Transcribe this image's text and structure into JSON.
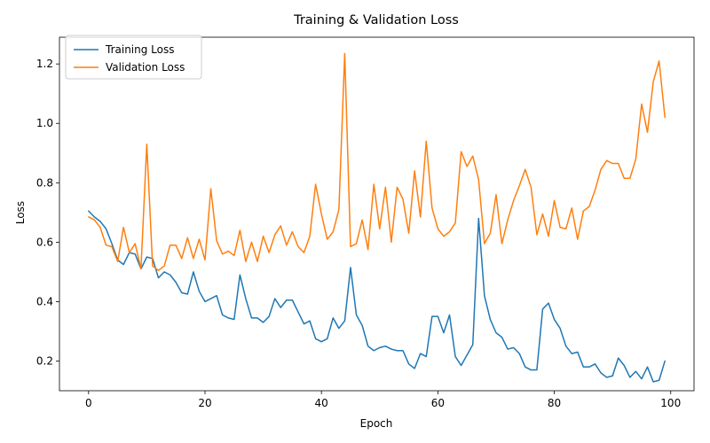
{
  "chart_data": {
    "type": "line",
    "title": "Training & Validation Loss",
    "xlabel": "Epoch",
    "ylabel": "Loss",
    "xlim": [
      -5,
      104
    ],
    "ylim": [
      0.1,
      1.29
    ],
    "xticks": [
      0,
      20,
      40,
      60,
      80,
      100
    ],
    "yticks": [
      0.2,
      0.4,
      0.6,
      0.8,
      1.0,
      1.2
    ],
    "ytick_labels": [
      "0.2",
      "0.4",
      "0.6",
      "0.8",
      "1.0",
      "1.2"
    ],
    "grid": false,
    "legend_position": "upper-left",
    "series": [
      {
        "name": "Training Loss",
        "color": "#1f77b4",
        "x": [
          0,
          1,
          2,
          3,
          4,
          5,
          6,
          7,
          8,
          9,
          10,
          11,
          12,
          13,
          14,
          15,
          16,
          17,
          18,
          19,
          20,
          21,
          22,
          23,
          24,
          25,
          26,
          27,
          28,
          29,
          30,
          31,
          32,
          33,
          34,
          35,
          36,
          37,
          38,
          39,
          40,
          41,
          42,
          43,
          44,
          45,
          46,
          47,
          48,
          49,
          50,
          51,
          52,
          53,
          54,
          55,
          56,
          57,
          58,
          59,
          60,
          61,
          62,
          63,
          64,
          65,
          66,
          67,
          68,
          69,
          70,
          71,
          72,
          73,
          74,
          75,
          76,
          77,
          78,
          79,
          80,
          81,
          82,
          83,
          84,
          85,
          86,
          87,
          88,
          89,
          90,
          91,
          92,
          93,
          94,
          95,
          96,
          97,
          98,
          99
        ],
        "y": [
          0.705,
          0.685,
          0.67,
          0.645,
          0.595,
          0.54,
          0.525,
          0.565,
          0.56,
          0.51,
          0.55,
          0.545,
          0.48,
          0.5,
          0.49,
          0.465,
          0.43,
          0.425,
          0.5,
          0.435,
          0.4,
          0.41,
          0.42,
          0.355,
          0.345,
          0.34,
          0.49,
          0.41,
          0.345,
          0.345,
          0.33,
          0.35,
          0.41,
          0.38,
          0.405,
          0.405,
          0.365,
          0.325,
          0.335,
          0.275,
          0.265,
          0.275,
          0.345,
          0.31,
          0.335,
          0.515,
          0.355,
          0.32,
          0.25,
          0.235,
          0.245,
          0.25,
          0.24,
          0.235,
          0.235,
          0.19,
          0.175,
          0.225,
          0.215,
          0.35,
          0.35,
          0.295,
          0.355,
          0.215,
          0.185,
          0.22,
          0.255,
          0.68,
          0.42,
          0.34,
          0.295,
          0.28,
          0.24,
          0.245,
          0.225,
          0.18,
          0.17,
          0.17,
          0.375,
          0.395,
          0.34,
          0.31,
          0.25,
          0.225,
          0.23,
          0.18,
          0.18,
          0.19,
          0.16,
          0.145,
          0.15,
          0.21,
          0.185,
          0.145,
          0.165,
          0.14,
          0.18,
          0.13,
          0.135,
          0.2
        ]
      },
      {
        "name": "Validation Loss",
        "color": "#ff7f0e",
        "x": [
          0,
          1,
          2,
          3,
          4,
          5,
          6,
          7,
          8,
          9,
          10,
          11,
          12,
          13,
          14,
          15,
          16,
          17,
          18,
          19,
          20,
          21,
          22,
          23,
          24,
          25,
          26,
          27,
          28,
          29,
          30,
          31,
          32,
          33,
          34,
          35,
          36,
          37,
          38,
          39,
          40,
          41,
          42,
          43,
          44,
          45,
          46,
          47,
          48,
          49,
          50,
          51,
          52,
          53,
          54,
          55,
          56,
          57,
          58,
          59,
          60,
          61,
          62,
          63,
          64,
          65,
          66,
          67,
          68,
          69,
          70,
          71,
          72,
          73,
          74,
          75,
          76,
          77,
          78,
          79,
          80,
          81,
          82,
          83,
          84,
          85,
          86,
          87,
          88,
          89,
          90,
          91,
          92,
          93,
          94,
          95,
          96,
          97,
          98,
          99
        ],
        "y": [
          0.685,
          0.675,
          0.65,
          0.59,
          0.585,
          0.535,
          0.65,
          0.565,
          0.595,
          0.51,
          0.93,
          0.52,
          0.505,
          0.52,
          0.59,
          0.59,
          0.545,
          0.615,
          0.545,
          0.61,
          0.54,
          0.78,
          0.605,
          0.56,
          0.57,
          0.555,
          0.64,
          0.535,
          0.6,
          0.535,
          0.62,
          0.565,
          0.625,
          0.655,
          0.59,
          0.635,
          0.585,
          0.565,
          0.62,
          0.795,
          0.695,
          0.61,
          0.635,
          0.71,
          1.235,
          0.585,
          0.595,
          0.675,
          0.575,
          0.795,
          0.645,
          0.785,
          0.6,
          0.785,
          0.745,
          0.63,
          0.84,
          0.685,
          0.94,
          0.715,
          0.645,
          0.62,
          0.635,
          0.665,
          0.905,
          0.855,
          0.89,
          0.81,
          0.595,
          0.63,
          0.76,
          0.595,
          0.675,
          0.74,
          0.79,
          0.845,
          0.785,
          0.625,
          0.695,
          0.62,
          0.74,
          0.65,
          0.645,
          0.715,
          0.61,
          0.705,
          0.72,
          0.775,
          0.845,
          0.875,
          0.865,
          0.865,
          0.815,
          0.815,
          0.88,
          1.065,
          0.97,
          1.14,
          1.21,
          1.02
        ]
      }
    ]
  }
}
